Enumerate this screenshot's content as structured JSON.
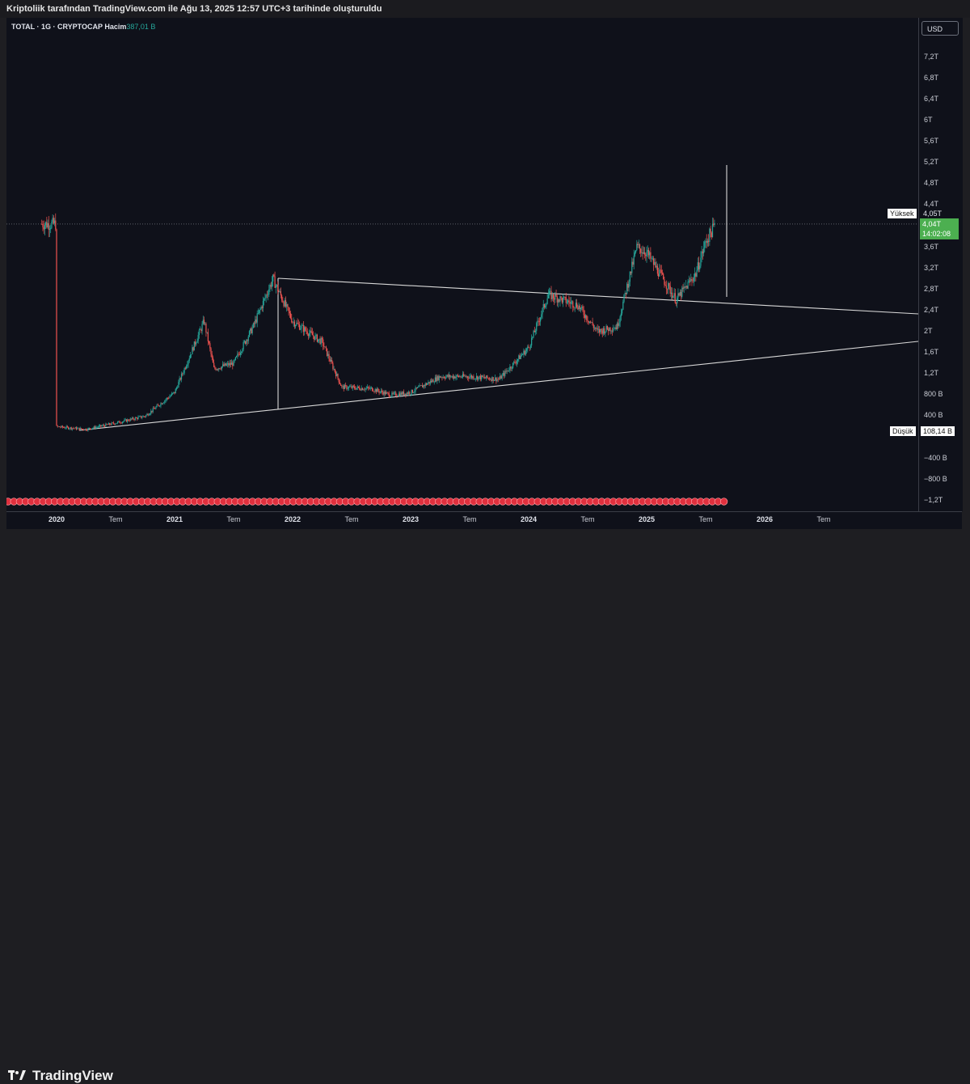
{
  "header": {
    "text": "Kriptoliik tarafından TradingView.com ile Ağu 13, 2025 12:57 UTC+3 tarihinde oluşturuldu"
  },
  "legend": {
    "symbol": "TOTAL · 1G · CRYPTOCAP",
    "volume_label": "Hacim",
    "volume_value": "387,01 B"
  },
  "currency": "USD",
  "price_axis": [
    "7,2T",
    "6,8T",
    "6,4T",
    "6T",
    "5,6T",
    "5,2T",
    "4,8T",
    "4,4T",
    "3,6T",
    "3,2T",
    "2,8T",
    "2,4T",
    "2T",
    "1,6T",
    "1,2T",
    "800 B",
    "400 B",
    "−400 B",
    "−800 B",
    "−1,2T"
  ],
  "time_axis": [
    {
      "label": "2020",
      "year": true
    },
    {
      "label": "Tem",
      "year": false
    },
    {
      "label": "2021",
      "year": true
    },
    {
      "label": "Tem",
      "year": false
    },
    {
      "label": "2022",
      "year": true
    },
    {
      "label": "Tem",
      "year": false
    },
    {
      "label": "2023",
      "year": true
    },
    {
      "label": "Tem",
      "year": false
    },
    {
      "label": "2024",
      "year": true
    },
    {
      "label": "Tem",
      "year": false
    },
    {
      "label": "2025",
      "year": true
    },
    {
      "label": "Tem",
      "year": false
    },
    {
      "label": "2026",
      "year": true
    },
    {
      "label": "Tem",
      "year": false
    }
  ],
  "high": {
    "label": "Yüksek",
    "value": "4,05T"
  },
  "low": {
    "label": "Düşük",
    "value": "108,14 B"
  },
  "current": {
    "price": "4,04T",
    "countdown": "14:02:08"
  },
  "brand": "TradingView",
  "colors": {
    "up": "#26a69a",
    "down": "#ef5350",
    "current": "#4caf50"
  },
  "chart_data": {
    "type": "line",
    "title": "",
    "x": [
      "2020-01",
      "2020-04",
      "2020-07",
      "2020-10",
      "2021-01",
      "2021-04",
      "2021-05",
      "2021-07",
      "2021-09",
      "2021-11",
      "2022-01",
      "2022-04",
      "2022-06",
      "2022-09",
      "2022-11",
      "2023-01",
      "2023-04",
      "2023-07",
      "2023-10",
      "2024-01",
      "2024-03",
      "2024-06",
      "2024-08",
      "2024-10",
      "2024-12",
      "2025-01",
      "2025-04",
      "2025-06",
      "2025-07",
      "2025-08"
    ],
    "series": [
      {
        "values": [
          0.2,
          0.15,
          0.27,
          0.4,
          0.85,
          2.2,
          1.3,
          1.4,
          2.1,
          3.0,
          2.2,
          1.8,
          0.95,
          0.92,
          0.8,
          0.85,
          1.15,
          1.15,
          1.1,
          1.7,
          2.7,
          2.5,
          2.0,
          2.1,
          3.6,
          3.5,
          2.6,
          3.1,
          3.7,
          4.04
        ]
      }
    ],
    "xlabel": "",
    "ylabel": "",
    "ylim": [
      -1.35,
      7.5
    ],
    "unit": "T USD",
    "grid": false,
    "extras": {
      "high_marker": 4.05,
      "low_marker": 0.10814,
      "current": 4.04
    }
  }
}
